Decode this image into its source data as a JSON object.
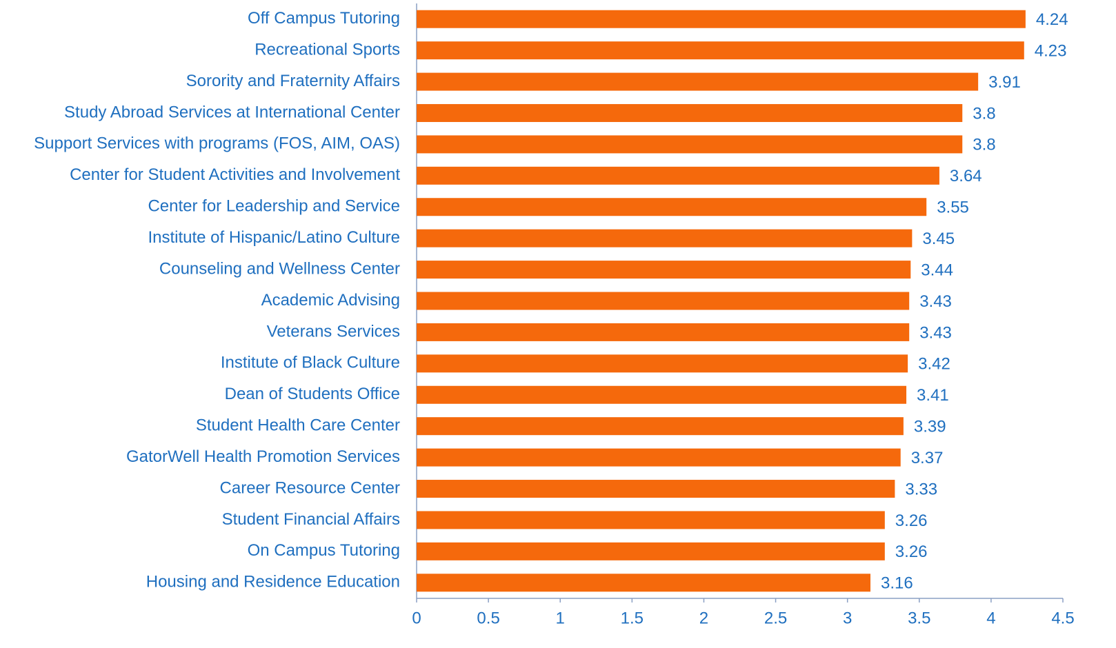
{
  "chart_data": {
    "type": "bar",
    "orientation": "horizontal",
    "categories": [
      "Off Campus Tutoring",
      "Recreational Sports",
      "Sorority and Fraternity Affairs",
      "Study Abroad Services at International Center",
      "Support Services with programs (FOS, AIM, OAS)",
      "Center for Student Activities and Involvement",
      "Center for Leadership and Service",
      "Institute of Hispanic/Latino Culture",
      "Counseling and Wellness Center",
      "Academic Advising",
      "Veterans Services",
      "Institute of Black Culture",
      "Dean of Students Office",
      "Student Health Care Center",
      "GatorWell Health Promotion Services",
      "Career Resource Center",
      "Student Financial Affairs",
      "On Campus Tutoring",
      "Housing and Residence Education"
    ],
    "values": [
      4.24,
      4.23,
      3.91,
      3.8,
      3.8,
      3.64,
      3.55,
      3.45,
      3.44,
      3.43,
      3.43,
      3.42,
      3.41,
      3.39,
      3.37,
      3.33,
      3.26,
      3.26,
      3.16
    ],
    "color": "#f5690c",
    "xlim": [
      0,
      4.5
    ],
    "xticks": [
      0,
      0.5,
      1,
      1.5,
      2,
      2.5,
      3,
      3.5,
      4,
      4.5
    ],
    "grid": false
  }
}
